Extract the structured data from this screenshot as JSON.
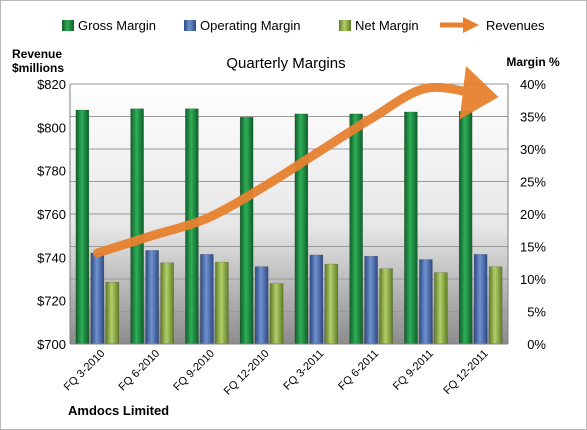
{
  "chart_data": {
    "type": "bar",
    "title": "Quarterly Margins",
    "footer": "Amdocs Limited",
    "y_left_label_line1": "Revenue",
    "y_left_label_line2": "$millions",
    "y_right_label": "Margin  %",
    "categories": [
      "FQ 3-2010",
      "FQ 6-2010",
      "FQ 9-2010",
      "FQ 12-2010",
      "FQ 3-2011",
      "FQ 6-2011",
      "FQ 9-2011",
      "FQ 12-2011"
    ],
    "left_axis": {
      "min": 700,
      "max": 820,
      "step": 20,
      "tick_labels": [
        "$700",
        "$720",
        "$740",
        "$760",
        "$780",
        "$800",
        "$820"
      ]
    },
    "right_axis": {
      "min": 0,
      "max": 40,
      "step": 5,
      "tick_labels": [
        "0%",
        "5%",
        "10%",
        "15%",
        "20%",
        "25%",
        "30%",
        "35%",
        "40%"
      ]
    },
    "series": [
      {
        "name": "Gross Margin",
        "type": "bar",
        "axis": "right",
        "color": "#1e8a43",
        "values": [
          36.0,
          36.2,
          36.2,
          34.9,
          35.4,
          35.4,
          35.7,
          35.8
        ]
      },
      {
        "name": "Operating Margin",
        "type": "bar",
        "axis": "right",
        "color": "#4d6fae",
        "values": [
          14.0,
          14.4,
          13.8,
          11.9,
          13.7,
          13.5,
          13.0,
          13.8
        ]
      },
      {
        "name": "Net Margin",
        "type": "bar",
        "axis": "right",
        "color": "#8aab42",
        "values": [
          9.5,
          12.5,
          12.6,
          9.3,
          12.3,
          11.6,
          11.0,
          11.9
        ]
      },
      {
        "name": "Revenues",
        "type": "line",
        "axis": "left",
        "color": "#e8812f",
        "values": [
          742,
          750,
          758,
          772,
          788,
          804,
          818,
          815
        ]
      }
    ],
    "grid": true,
    "legend_position": "top"
  }
}
